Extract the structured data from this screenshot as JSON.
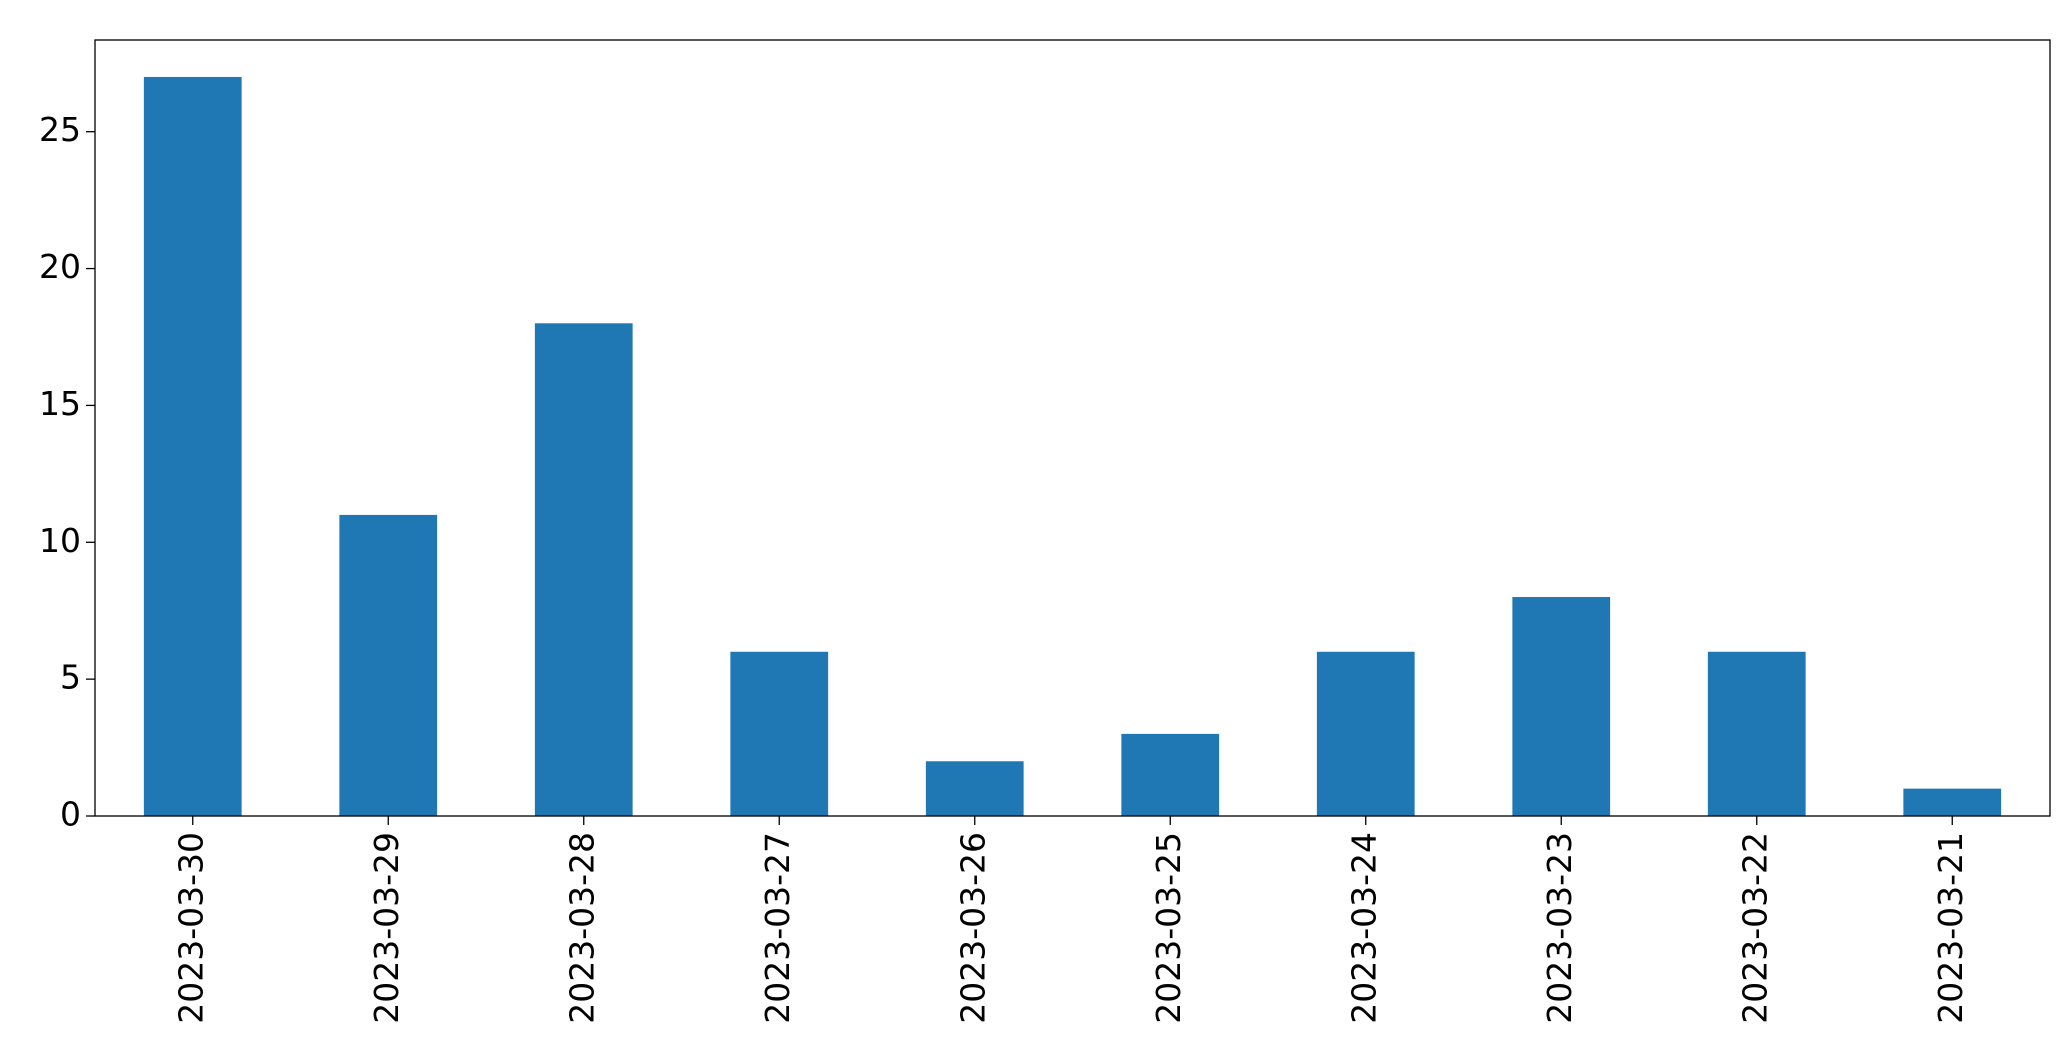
{
  "chart_data": {
    "type": "bar",
    "categories": [
      "2023-03-30",
      "2023-03-29",
      "2023-03-28",
      "2023-03-27",
      "2023-03-26",
      "2023-03-25",
      "2023-03-24",
      "2023-03-23",
      "2023-03-22",
      "2023-03-21"
    ],
    "values": [
      27,
      11,
      18,
      6,
      2,
      3,
      6,
      8,
      6,
      1
    ],
    "color": "#1f77b4",
    "ylim": [
      0,
      28.35
    ],
    "yticks": [
      0,
      5,
      10,
      15,
      20,
      25
    ],
    "grid": false
  }
}
